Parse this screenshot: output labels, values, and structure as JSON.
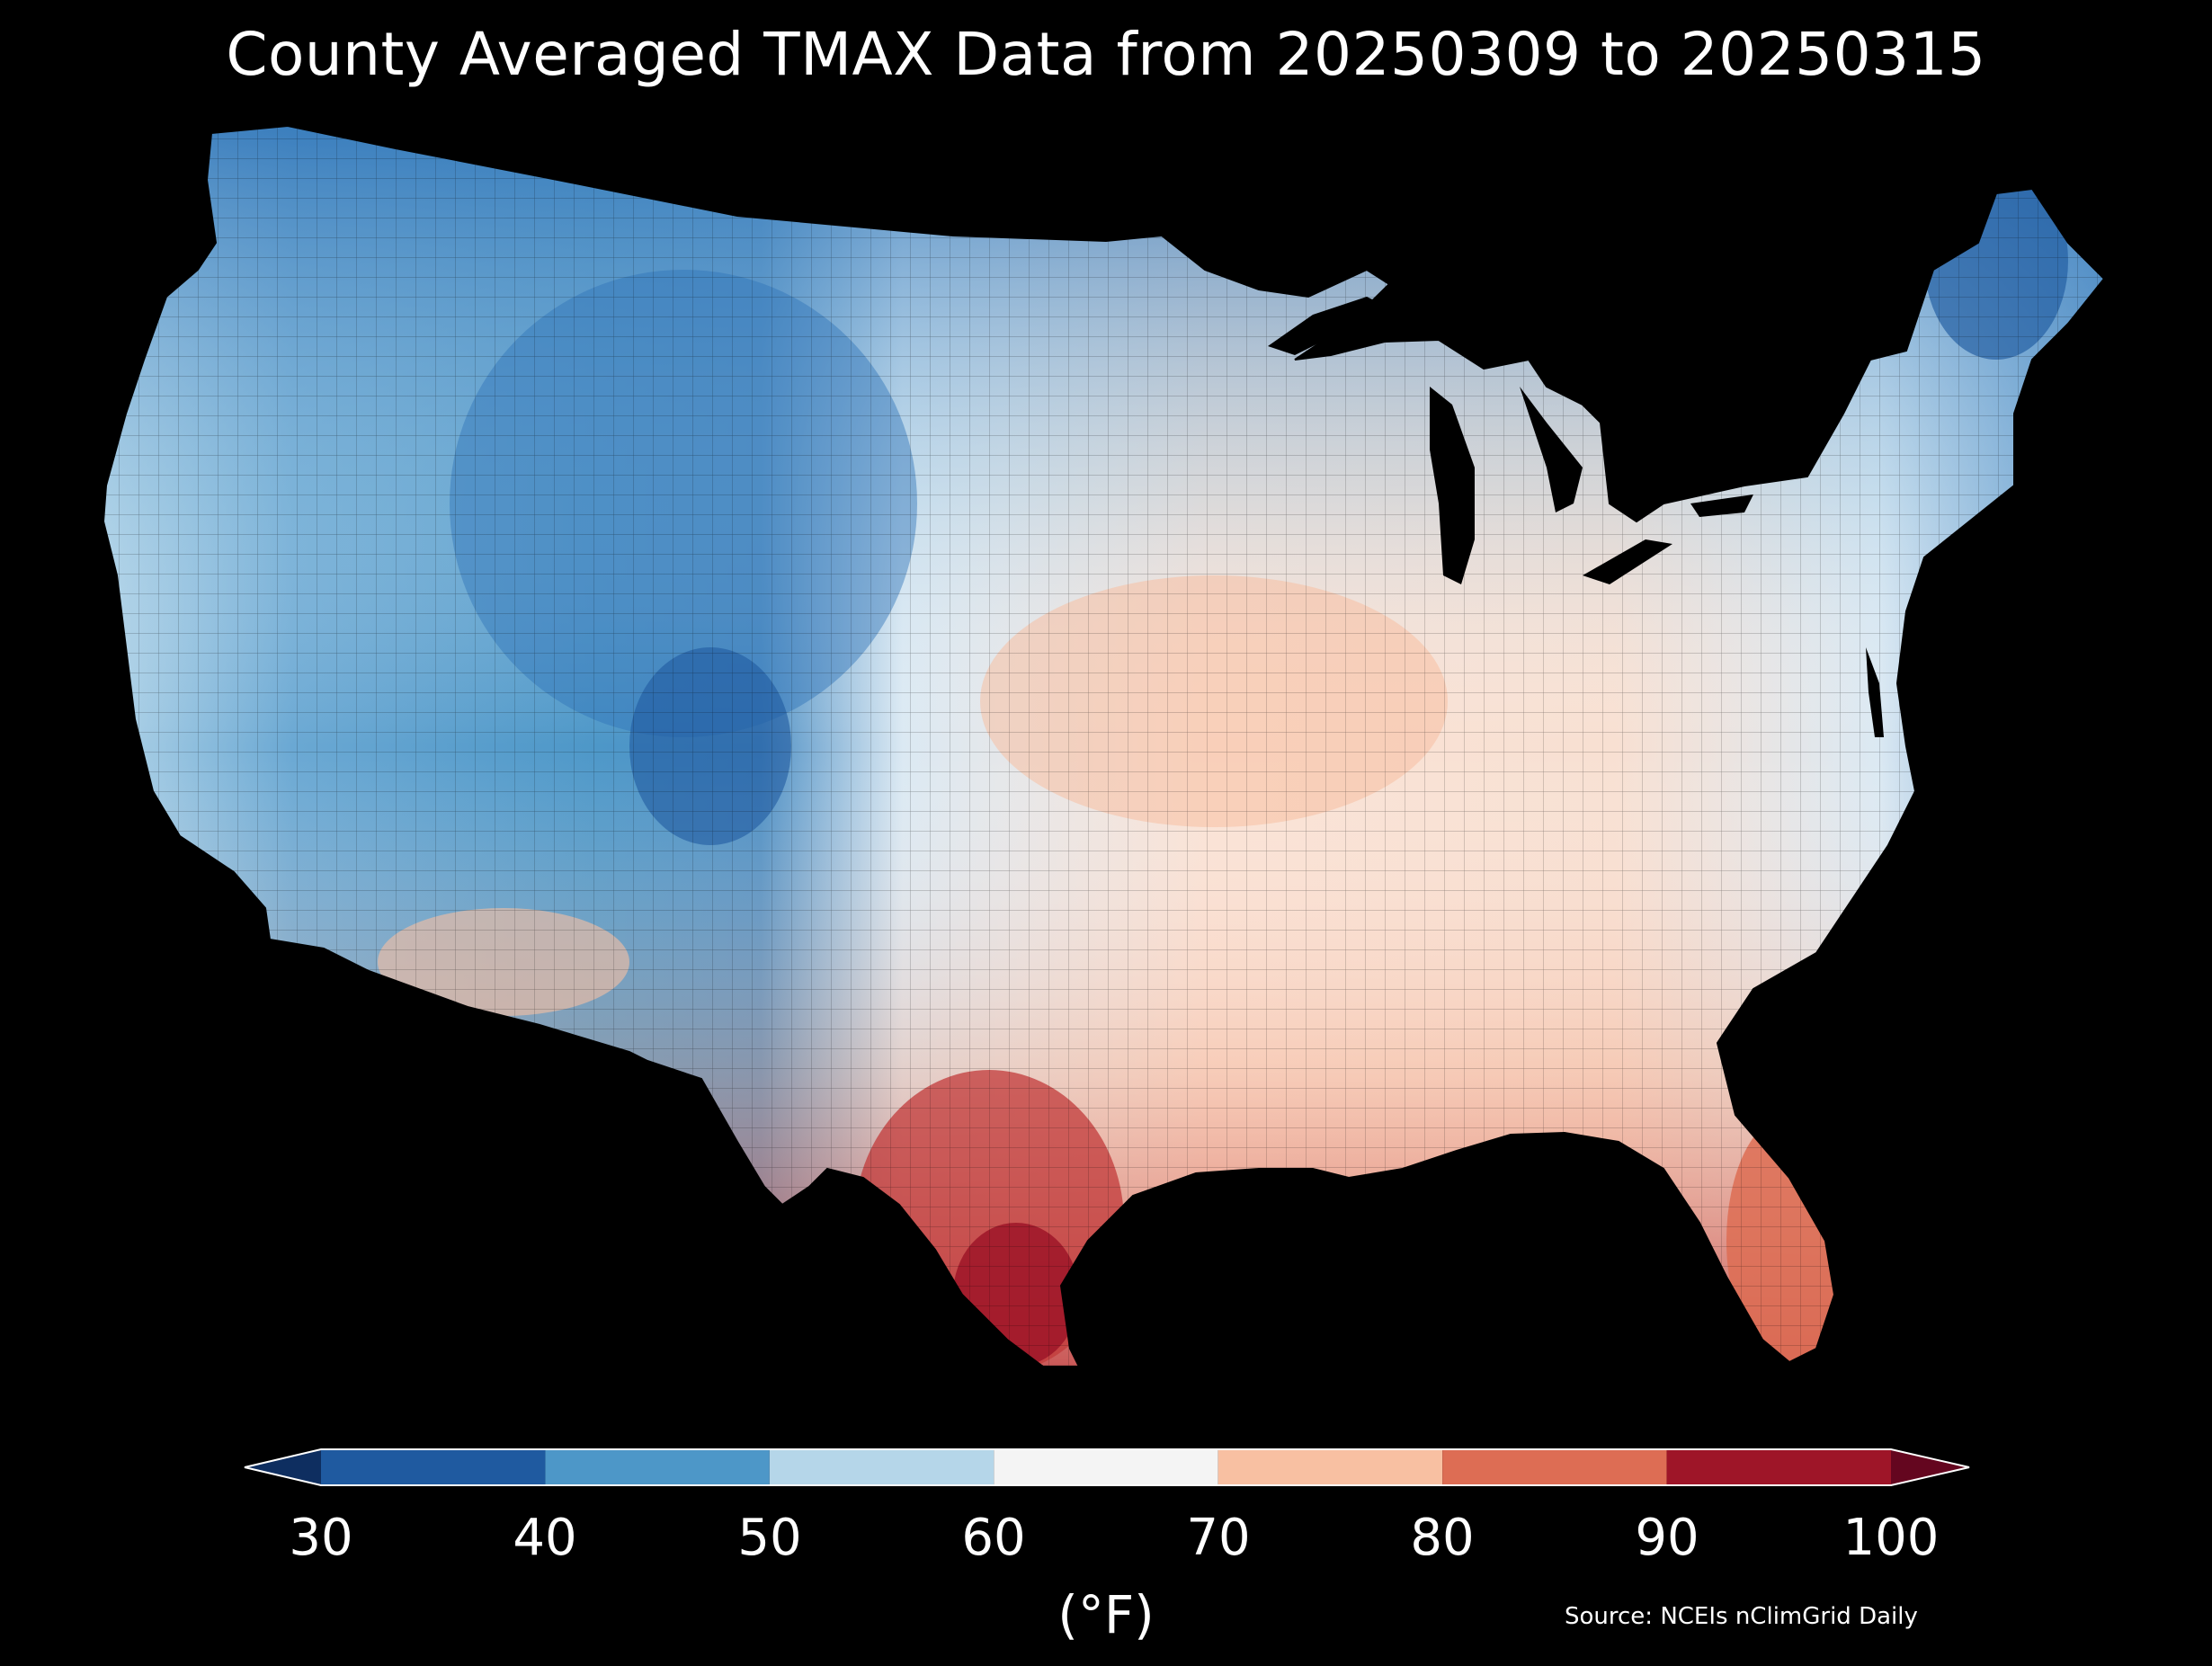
{
  "title": "County Averaged TMAX Data from 20250309 to 20250315",
  "colorbar": {
    "ticks": [
      "30",
      "40",
      "50",
      "60",
      "70",
      "80",
      "90",
      "100"
    ],
    "units": "(°F)",
    "bins": [
      {
        "range": [
          30,
          40
        ],
        "color": "#1f5aa0"
      },
      {
        "range": [
          40,
          50
        ],
        "color": "#4d97c8"
      },
      {
        "range": [
          50,
          60
        ],
        "color": "#b5d6e9"
      },
      {
        "range": [
          60,
          70
        ],
        "color": "#f4f4f4"
      },
      {
        "range": [
          70,
          80
        ],
        "color": "#f8c0a2"
      },
      {
        "range": [
          80,
          90
        ],
        "color": "#dd6d54"
      },
      {
        "range": [
          90,
          100
        ],
        "color": "#9e1528"
      }
    ],
    "under_color": "#0e2e60",
    "over_color": "#64061f",
    "extend": "both"
  },
  "source": "Source: NCEIs nClimGrid Daily",
  "map": {
    "region": "Contiguous United States",
    "level": "county",
    "variable": "TMAX"
  },
  "colors": {
    "background": "#000000",
    "land_outline": "#000000",
    "text": "#ffffff"
  }
}
